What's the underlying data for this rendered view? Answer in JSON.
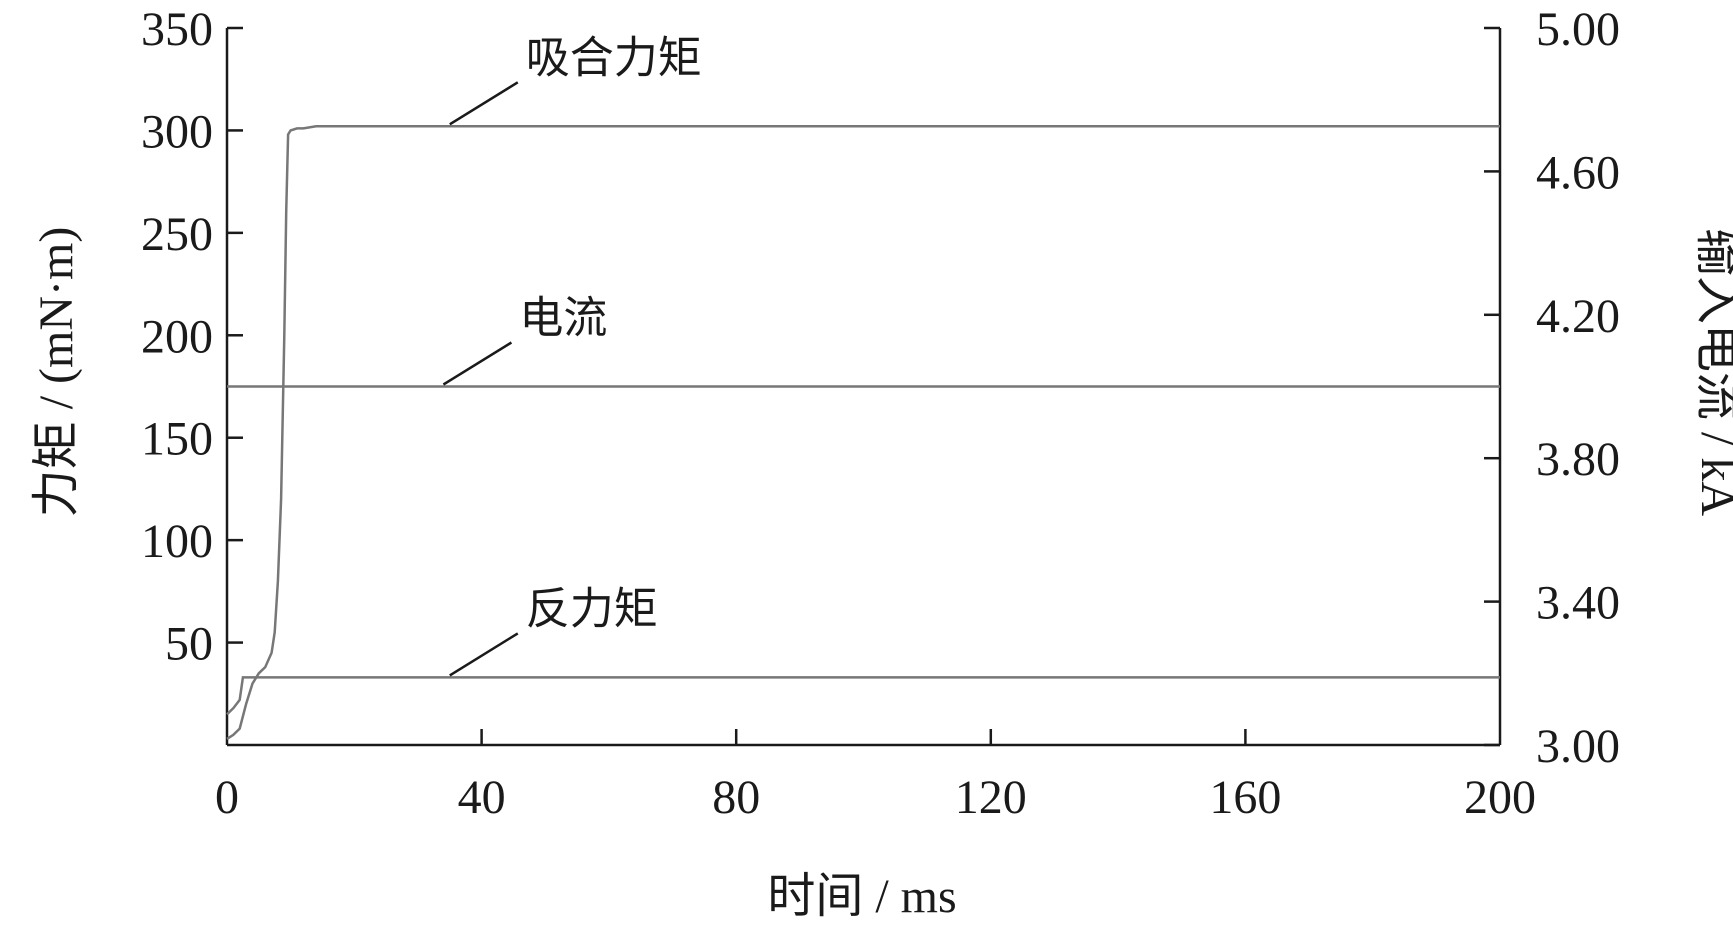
{
  "chart_data": {
    "type": "line",
    "xlabel": "时间 / ms",
    "ylabel_left": "力矩 / (mN·m)",
    "ylabel_right": "输入电流 / kA",
    "xlim": [
      0,
      200
    ],
    "ylim_left": [
      0,
      350
    ],
    "ylim_right": [
      3.0,
      5.0
    ],
    "x_ticks": [
      0,
      40,
      80,
      120,
      160,
      200
    ],
    "x_tick_labels": [
      "0",
      "40",
      "80",
      "120",
      "160",
      "200"
    ],
    "y_left_ticks": [
      50,
      100,
      150,
      200,
      250,
      300,
      350
    ],
    "y_left_tick_labels": [
      "50",
      "100",
      "150",
      "200",
      "250",
      "300",
      "350"
    ],
    "y_right_ticks": [
      3.0,
      3.4,
      3.8,
      4.2,
      4.6,
      5.0
    ],
    "y_right_tick_labels": [
      "3.00",
      "3.40",
      "3.80",
      "4.20",
      "4.60",
      "5.00"
    ],
    "grid": false,
    "series": [
      {
        "name": "吸合力矩",
        "axis": "left",
        "color": "#777777",
        "x": [
          0,
          1,
          2,
          3,
          4,
          5,
          6,
          7,
          7.5,
          8,
          8.5,
          9,
          9.3,
          9.6,
          10,
          11,
          12,
          14,
          20,
          200
        ],
        "y": [
          3,
          5,
          8,
          20,
          30,
          35,
          38,
          45,
          55,
          80,
          120,
          200,
          260,
          298,
          300,
          301,
          301,
          302,
          302,
          302
        ]
      },
      {
        "name": "电流",
        "axis": "right",
        "color": "#777777",
        "x": [
          0,
          200
        ],
        "y": [
          4.0,
          4.0
        ]
      },
      {
        "name": "反力矩",
        "axis": "left",
        "color": "#777777",
        "x": [
          0,
          1,
          2,
          2.5,
          3,
          200
        ],
        "y": [
          15,
          18,
          22,
          33,
          33,
          33
        ]
      }
    ],
    "annotations": [
      {
        "text": "吸合力矩",
        "series": "吸合力矩",
        "x": 35,
        "axis": "left",
        "y": 302
      },
      {
        "text": "电流",
        "series": "电流",
        "x": 34,
        "axis": "right",
        "y": 4.0
      },
      {
        "text": "反力矩",
        "series": "反力矩",
        "x": 35,
        "axis": "left",
        "y": 33
      }
    ]
  }
}
